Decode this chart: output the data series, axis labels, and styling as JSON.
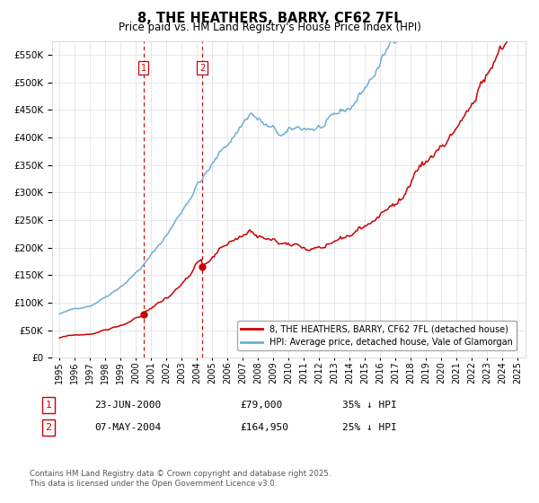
{
  "title": "8, THE HEATHERS, BARRY, CF62 7FL",
  "subtitle": "Price paid vs. HM Land Registry's House Price Index (HPI)",
  "legend_line1": "8, THE HEATHERS, BARRY, CF62 7FL (detached house)",
  "legend_line2": "HPI: Average price, detached house, Vale of Glamorgan",
  "marker1_label": "1",
  "marker1_date": "23-JUN-2000",
  "marker1_price": "£79,000",
  "marker1_hpi": "35% ↓ HPI",
  "marker1_x": 2000.48,
  "marker1_y": 79000,
  "marker2_label": "2",
  "marker2_date": "07-MAY-2004",
  "marker2_price": "£164,950",
  "marker2_hpi": "25% ↓ HPI",
  "marker2_x": 2004.35,
  "marker2_y": 164950,
  "footnote": "Contains HM Land Registry data © Crown copyright and database right 2025.\nThis data is licensed under the Open Government Licence v3.0.",
  "hpi_color": "#6baed6",
  "price_color": "#cc0000",
  "marker_color": "#cc0000",
  "ylim": [
    0,
    575000
  ],
  "xlim": [
    1994.5,
    2025.5
  ],
  "background_color": "#ffffff",
  "grid_color": "#dddddd",
  "yticks": [
    0,
    50000,
    100000,
    150000,
    200000,
    250000,
    300000,
    350000,
    400000,
    450000,
    500000,
    550000
  ],
  "xticks": [
    1995,
    1996,
    1997,
    1998,
    1999,
    2000,
    2001,
    2002,
    2003,
    2004,
    2005,
    2006,
    2007,
    2008,
    2009,
    2010,
    2011,
    2012,
    2013,
    2014,
    2015,
    2016,
    2017,
    2018,
    2019,
    2020,
    2021,
    2022,
    2023,
    2024,
    2025
  ]
}
